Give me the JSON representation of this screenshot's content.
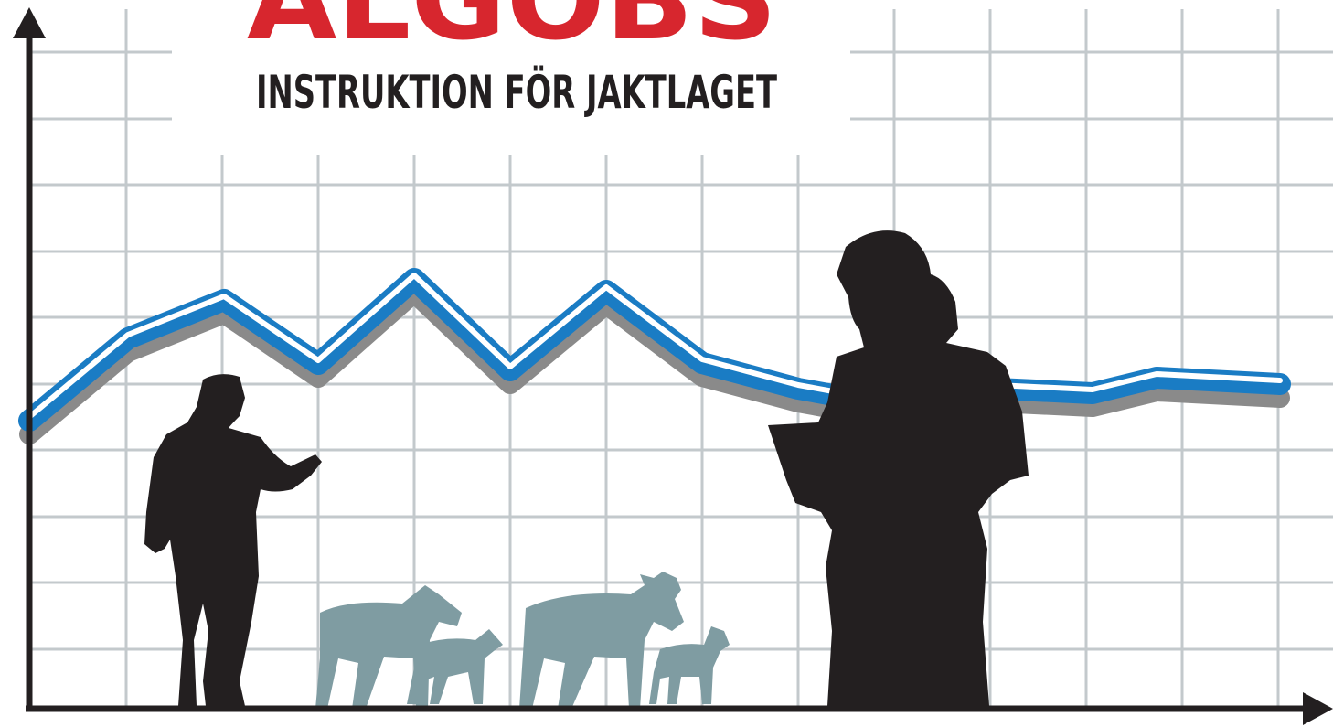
{
  "header": {
    "title": "ÄLGOBS",
    "subtitle": "INSTRUKTION FÖR JAKTLAGET"
  }
}
